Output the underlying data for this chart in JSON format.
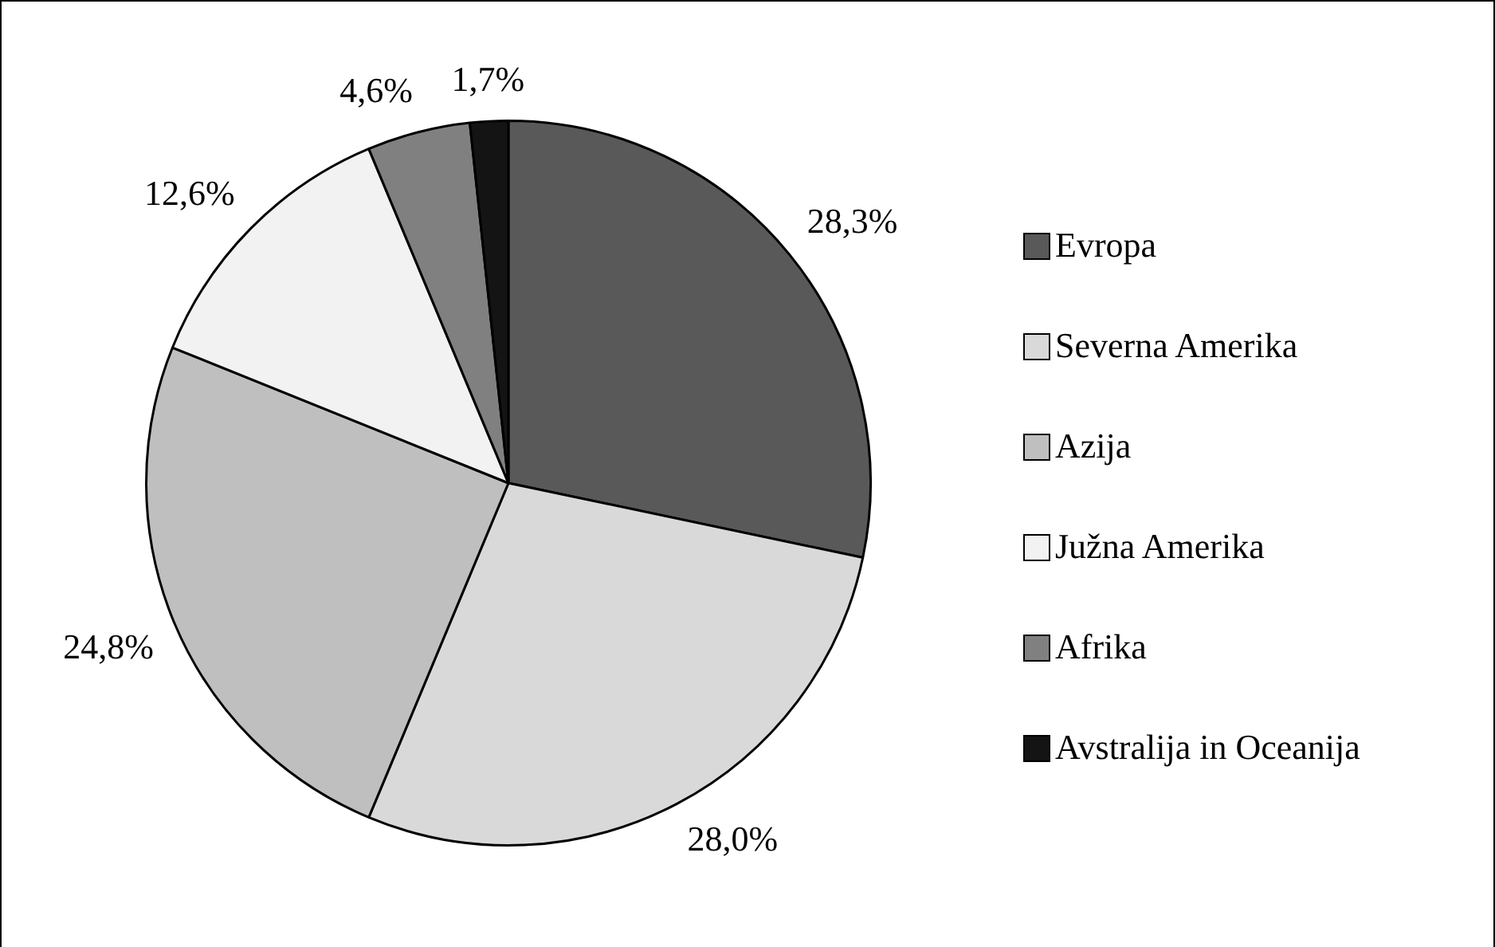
{
  "chart_data": {
    "type": "pie",
    "categories": [
      "Evropa",
      "Severna Amerika",
      "Azija",
      "Južna Amerika",
      "Afrika",
      "Avstralija in Oceanija"
    ],
    "values": [
      28.3,
      28.0,
      24.8,
      12.6,
      4.6,
      1.7
    ],
    "colors": [
      "#595959",
      "#d9d9d9",
      "#bfbfbf",
      "#f2f2f2",
      "#808080",
      "#141414"
    ],
    "value_labels": [
      "28,3%",
      "28,0%",
      "24,8%",
      "12,6%",
      "4,6%",
      "1,7%"
    ],
    "legend": "right"
  }
}
